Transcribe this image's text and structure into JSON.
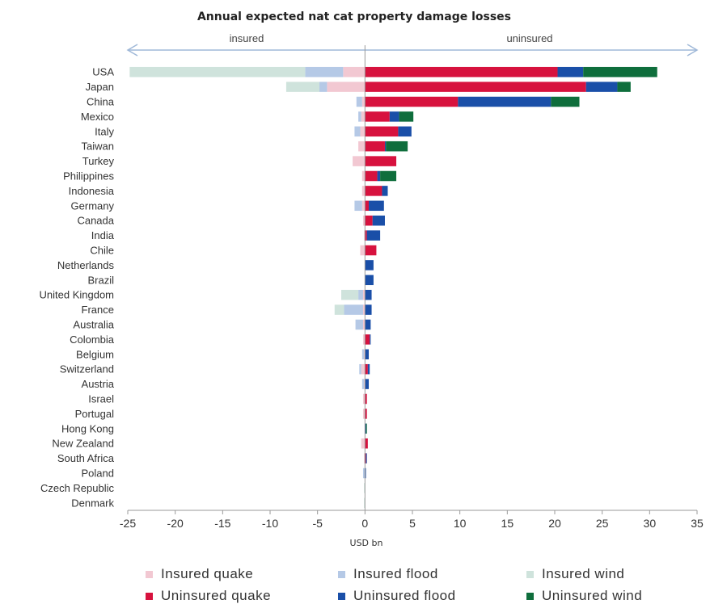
{
  "chart_data": {
    "type": "bar",
    "orientation": "horizontal",
    "stacked": true,
    "title": "Annual expected nat cat property damage losses",
    "xlabel": "USD bn",
    "xlim": [
      -25,
      35
    ],
    "xticks": [
      -25,
      -20,
      -15,
      -10,
      -5,
      0,
      5,
      10,
      15,
      20,
      25,
      30,
      35
    ],
    "grid": false,
    "legend_position": "bottom",
    "region_labels": {
      "left": "insured",
      "right": "uninsured"
    },
    "categories": [
      "USA",
      "Japan",
      "China",
      "Mexico",
      "Italy",
      "Taiwan",
      "Turkey",
      "Philippines",
      "Indonesia",
      "Germany",
      "Canada",
      "India",
      "Chile",
      "Netherlands",
      "Brazil",
      "United Kingdom",
      "France",
      "Australia",
      "Colombia",
      "Belgium",
      "Switzerland",
      "Austria",
      "Israel",
      "Portugal",
      "Hong Kong",
      "New Zealand",
      "South Africa",
      "Poland",
      "Czech Republic",
      "Denmark"
    ],
    "series": [
      {
        "name": "Insured quake",
        "color": "#f2c8d2",
        "values": [
          -2.3,
          -4.0,
          -0.3,
          -0.4,
          -0.5,
          -0.7,
          -1.3,
          -0.3,
          -0.3,
          -0.3,
          -0.2,
          -0.1,
          -0.5,
          0,
          0,
          -0.2,
          -0.2,
          -0.2,
          -0.2,
          -0.1,
          -0.4,
          -0.1,
          -0.2,
          -0.2,
          0,
          -0.4,
          -0.1,
          0,
          0,
          0
        ]
      },
      {
        "name": "Insured flood",
        "color": "#b5c9e6",
        "values": [
          -4.0,
          -0.8,
          -0.6,
          -0.3,
          -0.6,
          0,
          0,
          0,
          0,
          -0.8,
          0,
          0,
          0,
          0,
          0,
          -0.5,
          -2.0,
          -0.8,
          0,
          -0.2,
          -0.2,
          -0.2,
          0,
          0,
          0,
          0,
          0,
          -0.2,
          0,
          0
        ]
      },
      {
        "name": "Insured wind",
        "color": "#cfe3dc",
        "values": [
          -18.5,
          -3.5,
          0,
          0,
          0,
          0,
          0,
          0,
          0,
          0,
          0,
          0,
          0,
          0,
          0,
          -1.8,
          -1.0,
          0,
          0,
          0,
          0,
          0,
          0,
          0,
          0,
          0,
          0,
          0,
          -0.1,
          -0.1
        ]
      },
      {
        "name": "Uninsured quake",
        "color": "#d7123e",
        "values": [
          20.3,
          23.3,
          9.8,
          2.6,
          3.5,
          2.1,
          3.3,
          1.3,
          1.8,
          0.4,
          0.8,
          0.2,
          1.2,
          0,
          0,
          0,
          0,
          0,
          0.5,
          0,
          0.3,
          0,
          0.2,
          0.2,
          0,
          0.3,
          0.1,
          0,
          0,
          0
        ]
      },
      {
        "name": "Uninsured flood",
        "color": "#1a4fa8",
        "values": [
          2.7,
          3.3,
          9.8,
          1.0,
          1.4,
          0.1,
          0,
          0.3,
          0.6,
          1.6,
          1.3,
          1.4,
          0,
          0.9,
          0.9,
          0.7,
          0.7,
          0.6,
          0.1,
          0.4,
          0.2,
          0.4,
          0,
          0,
          0.1,
          0,
          0.1,
          0.1,
          0,
          0
        ]
      },
      {
        "name": "Uninsured wind",
        "color": "#0f6e3c",
        "values": [
          7.8,
          1.4,
          3.0,
          1.5,
          0,
          2.3,
          0,
          1.7,
          0,
          0,
          0,
          0,
          0,
          0,
          0,
          0,
          0,
          0,
          0,
          0,
          0,
          0,
          0,
          0,
          0.1,
          0,
          0,
          0,
          0,
          0
        ]
      }
    ]
  }
}
